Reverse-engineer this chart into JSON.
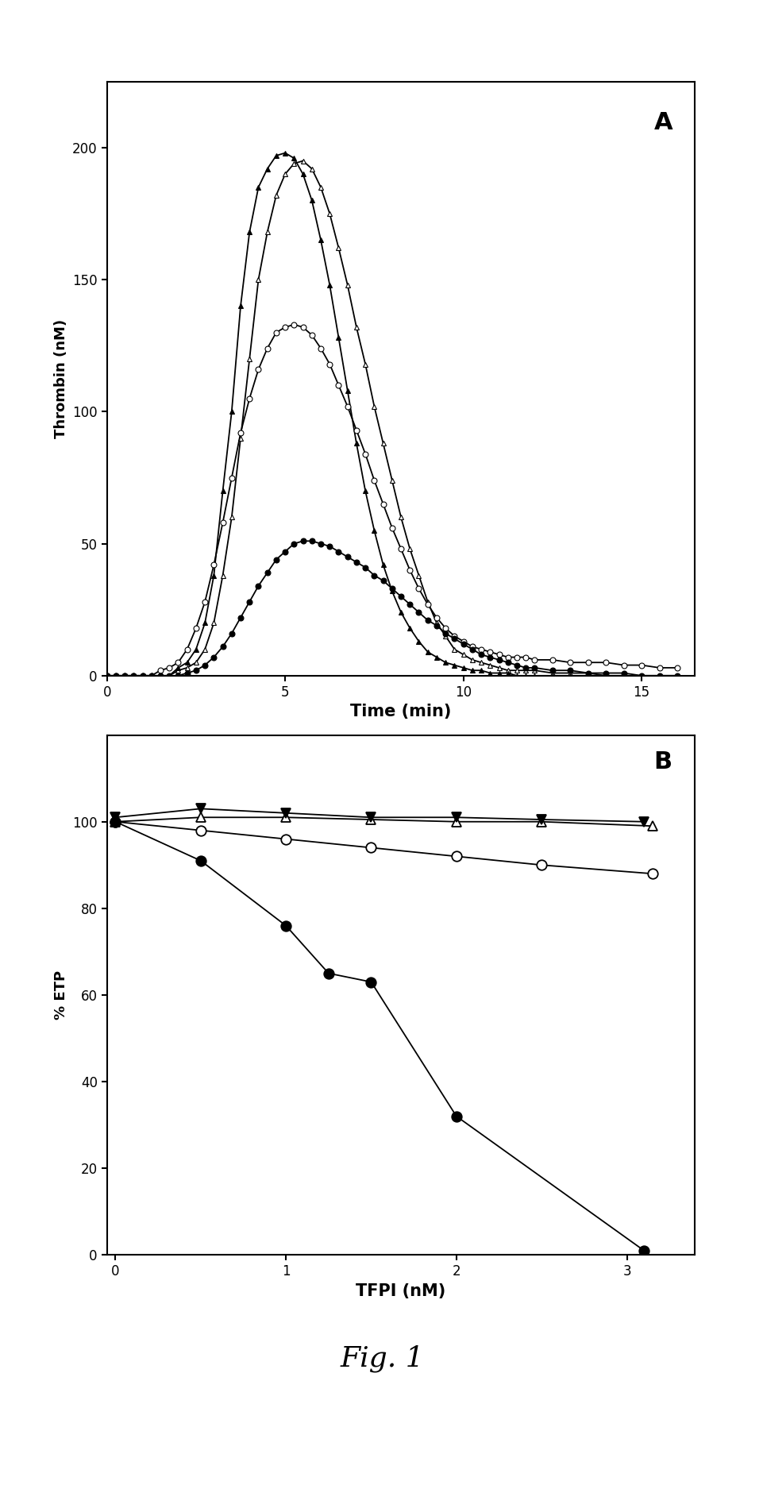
{
  "panel_A": {
    "ylabel": "Thrombin (nM)",
    "xlabel": "Time (min)",
    "label": "A",
    "xlim": [
      0,
      16.5
    ],
    "ylim": [
      0,
      225
    ],
    "yticks": [
      0,
      50,
      100,
      150,
      200
    ],
    "xticks": [
      0,
      5,
      10,
      15
    ],
    "open_triangle": {
      "x": [
        0,
        0.25,
        0.5,
        0.75,
        1.0,
        1.25,
        1.5,
        1.75,
        2.0,
        2.25,
        2.5,
        2.75,
        3.0,
        3.25,
        3.5,
        3.75,
        4.0,
        4.25,
        4.5,
        4.75,
        5.0,
        5.25,
        5.5,
        5.75,
        6.0,
        6.25,
        6.5,
        6.75,
        7.0,
        7.25,
        7.5,
        7.75,
        8.0,
        8.25,
        8.5,
        8.75,
        9.0,
        9.25,
        9.5,
        9.75,
        10.0,
        10.25,
        10.5,
        10.75,
        11.0,
        11.25,
        11.5,
        11.75,
        12.0,
        12.5,
        13.0,
        13.5,
        14.0,
        14.5,
        15.0,
        15.5,
        16.0
      ],
      "y": [
        0,
        0,
        0,
        0,
        0,
        0,
        0,
        0,
        2,
        3,
        5,
        10,
        20,
        38,
        60,
        90,
        120,
        150,
        168,
        182,
        190,
        194,
        195,
        192,
        185,
        175,
        162,
        148,
        132,
        118,
        102,
        88,
        74,
        60,
        48,
        38,
        28,
        20,
        15,
        10,
        8,
        6,
        5,
        4,
        3,
        2,
        2,
        2,
        2,
        1,
        1,
        1,
        0,
        0,
        0,
        0,
        0
      ]
    },
    "filled_triangle": {
      "x": [
        0,
        0.25,
        0.5,
        0.75,
        1.0,
        1.25,
        1.5,
        1.75,
        2.0,
        2.25,
        2.5,
        2.75,
        3.0,
        3.25,
        3.5,
        3.75,
        4.0,
        4.25,
        4.5,
        4.75,
        5.0,
        5.25,
        5.5,
        5.75,
        6.0,
        6.25,
        6.5,
        6.75,
        7.0,
        7.25,
        7.5,
        7.75,
        8.0,
        8.25,
        8.5,
        8.75,
        9.0,
        9.25,
        9.5,
        9.75,
        10.0,
        10.25,
        10.5,
        10.75,
        11.0,
        11.25,
        11.5,
        11.75,
        12.0,
        12.5,
        13.0,
        13.5,
        14.0,
        14.5,
        15.0,
        15.5,
        16.0
      ],
      "y": [
        0,
        0,
        0,
        0,
        0,
        0,
        0,
        0,
        3,
        5,
        10,
        20,
        38,
        70,
        100,
        140,
        168,
        185,
        192,
        197,
        198,
        196,
        190,
        180,
        165,
        148,
        128,
        108,
        88,
        70,
        55,
        42,
        32,
        24,
        18,
        13,
        9,
        7,
        5,
        4,
        3,
        2,
        2,
        1,
        1,
        1,
        0,
        0,
        0,
        0,
        0,
        0,
        0,
        0,
        0,
        0,
        0
      ]
    },
    "open_circle": {
      "x": [
        0,
        0.25,
        0.5,
        0.75,
        1.0,
        1.25,
        1.5,
        1.75,
        2.0,
        2.25,
        2.5,
        2.75,
        3.0,
        3.25,
        3.5,
        3.75,
        4.0,
        4.25,
        4.5,
        4.75,
        5.0,
        5.25,
        5.5,
        5.75,
        6.0,
        6.25,
        6.5,
        6.75,
        7.0,
        7.25,
        7.5,
        7.75,
        8.0,
        8.25,
        8.5,
        8.75,
        9.0,
        9.25,
        9.5,
        9.75,
        10.0,
        10.25,
        10.5,
        10.75,
        11.0,
        11.25,
        11.5,
        11.75,
        12.0,
        12.5,
        13.0,
        13.5,
        14.0,
        14.5,
        15.0,
        15.5,
        16.0
      ],
      "y": [
        0,
        0,
        0,
        0,
        0,
        0,
        2,
        3,
        5,
        10,
        18,
        28,
        42,
        58,
        75,
        92,
        105,
        116,
        124,
        130,
        132,
        133,
        132,
        129,
        124,
        118,
        110,
        102,
        93,
        84,
        74,
        65,
        56,
        48,
        40,
        33,
        27,
        22,
        18,
        15,
        13,
        11,
        10,
        9,
        8,
        7,
        7,
        7,
        6,
        6,
        5,
        5,
        5,
        4,
        4,
        3,
        3
      ]
    },
    "filled_circle": {
      "x": [
        0,
        0.25,
        0.5,
        0.75,
        1.0,
        1.25,
        1.5,
        1.75,
        2.0,
        2.25,
        2.5,
        2.75,
        3.0,
        3.25,
        3.5,
        3.75,
        4.0,
        4.25,
        4.5,
        4.75,
        5.0,
        5.25,
        5.5,
        5.75,
        6.0,
        6.25,
        6.5,
        6.75,
        7.0,
        7.25,
        7.5,
        7.75,
        8.0,
        8.25,
        8.5,
        8.75,
        9.0,
        9.25,
        9.5,
        9.75,
        10.0,
        10.25,
        10.5,
        10.75,
        11.0,
        11.25,
        11.5,
        11.75,
        12.0,
        12.5,
        13.0,
        13.5,
        14.0,
        14.5,
        15.0,
        15.5,
        16.0
      ],
      "y": [
        0,
        0,
        0,
        0,
        0,
        0,
        0,
        0,
        0,
        1,
        2,
        4,
        7,
        11,
        16,
        22,
        28,
        34,
        39,
        44,
        47,
        50,
        51,
        51,
        50,
        49,
        47,
        45,
        43,
        41,
        38,
        36,
        33,
        30,
        27,
        24,
        21,
        19,
        16,
        14,
        12,
        10,
        8,
        7,
        6,
        5,
        4,
        3,
        3,
        2,
        2,
        1,
        1,
        1,
        0,
        0,
        0
      ]
    }
  },
  "panel_B": {
    "ylabel": "% ETP",
    "xlabel": "TFPI (nM)",
    "label": "B",
    "xlim": [
      -0.05,
      3.4
    ],
    "ylim": [
      0,
      120
    ],
    "yticks": [
      0,
      20,
      40,
      60,
      80,
      100
    ],
    "xticks": [
      0,
      1,
      2,
      3
    ],
    "open_triangle": {
      "x": [
        0,
        0.5,
        1.0,
        1.5,
        2.0,
        2.5,
        3.15
      ],
      "y": [
        100,
        101,
        101,
        100.5,
        100,
        100,
        99
      ]
    },
    "filled_inv_triangle": {
      "x": [
        0,
        0.5,
        1.0,
        1.5,
        2.0,
        2.5,
        3.1
      ],
      "y": [
        101,
        103,
        102,
        101,
        101,
        100.5,
        100
      ]
    },
    "open_circle": {
      "x": [
        0,
        0.5,
        1.0,
        1.5,
        2.0,
        2.5,
        3.15
      ],
      "y": [
        100,
        98,
        96,
        94,
        92,
        90,
        88
      ]
    },
    "filled_circle": {
      "x": [
        0,
        0.5,
        1.0,
        1.25,
        1.5,
        2.0,
        3.1
      ],
      "y": [
        100,
        91,
        76,
        65,
        63,
        32,
        1
      ]
    }
  },
  "fig_label": "Fig. 1",
  "background_color": "#ffffff",
  "marker_size_A": 5,
  "marker_size_B": 9,
  "linewidth": 1.3
}
